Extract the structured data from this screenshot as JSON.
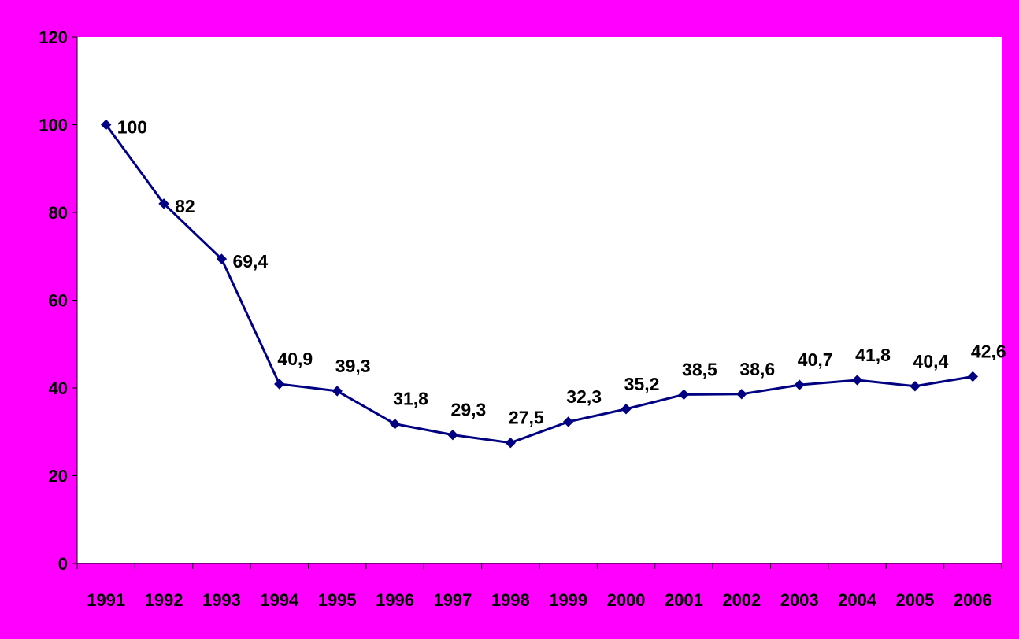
{
  "colors": {
    "background": "#ff00ff",
    "plot_area": "#ffffff",
    "series_line": "#000080",
    "axis": "#000000",
    "text": "#000000"
  },
  "chart_data": {
    "type": "line",
    "title": "",
    "xlabel": "",
    "ylabel": "",
    "categories": [
      "1991",
      "1992",
      "1993",
      "1994",
      "1995",
      "1996",
      "1997",
      "1998",
      "1999",
      "2000",
      "2001",
      "2002",
      "2003",
      "2004",
      "2005",
      "2006"
    ],
    "series": [
      {
        "values": [
          100,
          82,
          69.4,
          40.9,
          39.3,
          31.8,
          29.3,
          27.5,
          32.3,
          35.2,
          38.5,
          38.6,
          40.7,
          41.8,
          40.4,
          42.6
        ],
        "data_labels": [
          "100",
          "82",
          "69,4",
          "40,9",
          "39,3",
          "31,8",
          "29,3",
          "27,5",
          "32,3",
          "35,2",
          "38,5",
          "38,6",
          "40,7",
          "41,8",
          "40,4",
          "42,6"
        ],
        "marker": "diamond"
      }
    ],
    "ylim": [
      0,
      120
    ],
    "yticks": [
      0,
      20,
      40,
      60,
      80,
      100,
      120
    ],
    "ytick_labels": [
      "0",
      "20",
      "40",
      "60",
      "80",
      "100",
      "120"
    ],
    "grid": false,
    "legend": "none"
  }
}
